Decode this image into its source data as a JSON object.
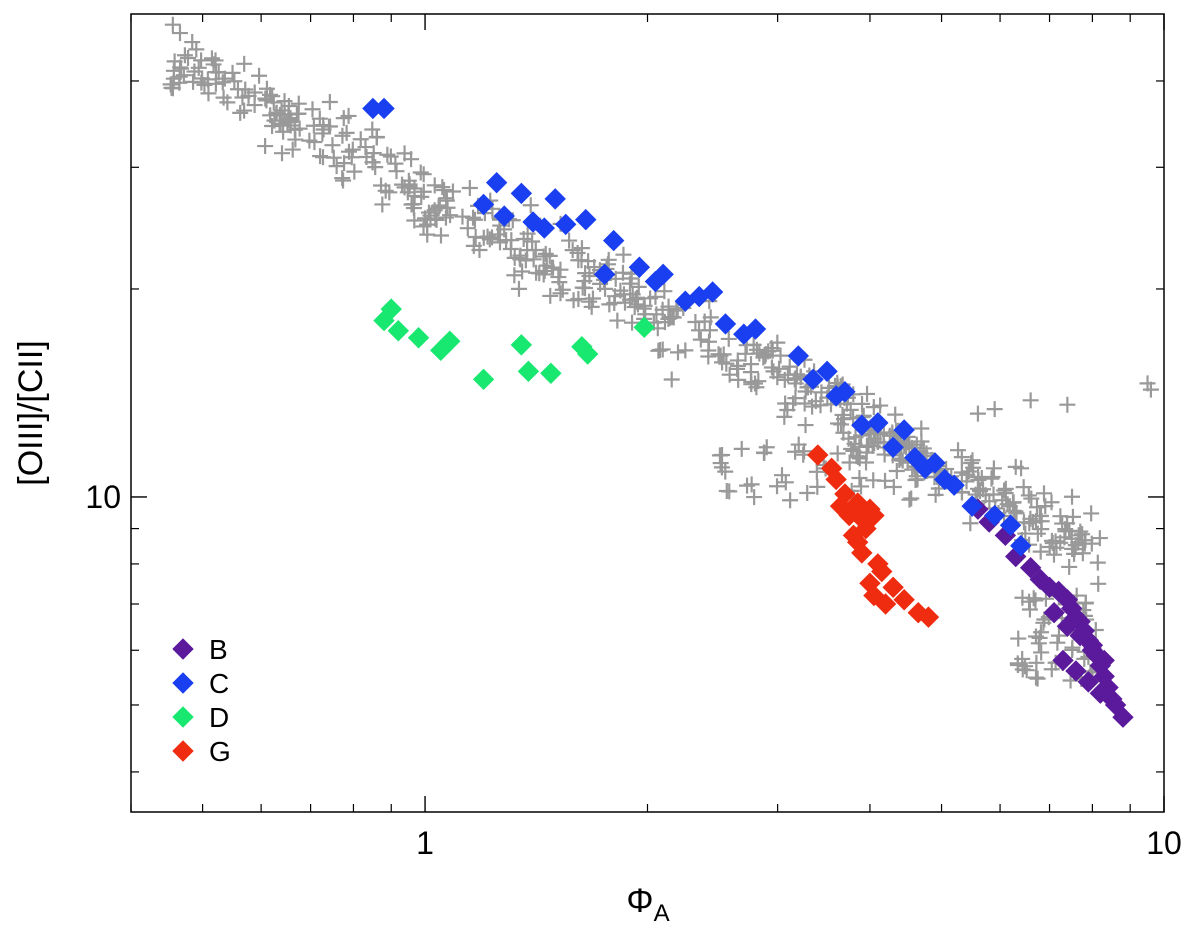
{
  "chart_data": {
    "type": "scatter",
    "title": "",
    "xlabel_symbol": "Φ",
    "xlabel_subscript": "A",
    "ylabel": "[OIII]/[CII]",
    "x_scale": "log",
    "y_scale": "log",
    "xlim": [
      0.4,
      10
    ],
    "ylim": [
      3.5,
      50
    ],
    "x_tick_labels": [
      {
        "value": 1,
        "label": "1"
      },
      {
        "value": 10,
        "label": "10"
      }
    ],
    "y_tick_labels": [
      {
        "value": 10,
        "label": "10"
      }
    ],
    "legend_position": "bottom-left",
    "background_series": {
      "name": "all",
      "marker": "plus",
      "color": "#999999"
    },
    "series": [
      {
        "name": "B",
        "marker": "diamond",
        "color": "#5b1a9c",
        "x": [
          5.6,
          5.8,
          6.1,
          6.3,
          6.6,
          6.8,
          7.0,
          7.2,
          7.4,
          7.5,
          7.6,
          7.7,
          7.8,
          7.9,
          8.0,
          8.1,
          8.2,
          8.3,
          8.4,
          8.5,
          7.3,
          7.6,
          7.9,
          8.2,
          8.6,
          8.8,
          7.1,
          7.4,
          7.7,
          8.0,
          8.3
        ],
        "y": [
          9.6,
          9.2,
          8.8,
          8.2,
          7.9,
          7.6,
          7.4,
          7.3,
          7.1,
          6.9,
          6.7,
          6.6,
          6.4,
          6.2,
          6.1,
          5.9,
          5.7,
          5.5,
          5.3,
          5.1,
          5.8,
          5.6,
          5.4,
          5.2,
          5.0,
          4.8,
          6.8,
          6.5,
          6.3,
          6.0,
          5.8
        ]
      },
      {
        "name": "C",
        "marker": "diamond",
        "color": "#1a3ff0",
        "x": [
          0.85,
          0.88,
          1.25,
          1.2,
          1.28,
          1.35,
          1.4,
          1.45,
          1.5,
          1.55,
          1.65,
          1.75,
          1.8,
          1.95,
          2.05,
          2.1,
          2.25,
          2.35,
          2.45,
          2.55,
          2.7,
          2.8,
          3.2,
          3.35,
          3.5,
          3.6,
          3.7,
          3.9,
          4.1,
          4.3,
          4.45,
          4.6,
          4.75,
          4.9,
          5.05,
          5.2,
          5.5,
          5.9,
          6.2,
          6.4
        ],
        "y": [
          36.5,
          36.5,
          28.5,
          26.5,
          25.5,
          27.5,
          25.0,
          24.5,
          27.0,
          24.8,
          25.2,
          21.0,
          23.5,
          21.5,
          20.5,
          21.0,
          19.2,
          19.5,
          19.8,
          17.8,
          17.2,
          17.5,
          16.0,
          14.8,
          15.2,
          14.0,
          14.2,
          12.7,
          12.8,
          11.8,
          12.5,
          11.4,
          11.0,
          11.2,
          10.6,
          10.4,
          9.7,
          9.4,
          9.1,
          8.5
        ]
      },
      {
        "name": "D",
        "marker": "diamond",
        "color": "#19e870",
        "x": [
          0.88,
          0.9,
          0.92,
          0.98,
          1.05,
          1.08,
          1.2,
          1.35,
          1.38,
          1.48,
          1.63,
          1.66,
          1.98
        ],
        "y": [
          18.0,
          18.7,
          17.4,
          17.0,
          16.3,
          16.8,
          14.8,
          16.6,
          15.2,
          15.1,
          16.5,
          16.1,
          17.6
        ],
        "pos_note": "x values in data units"
      },
      {
        "name": "G",
        "marker": "diamond",
        "color": "#ef2b10",
        "x": [
          3.4,
          3.55,
          3.6,
          3.7,
          3.65,
          3.75,
          3.85,
          3.9,
          3.95,
          4.0,
          4.05,
          3.8,
          3.85,
          3.9,
          4.1,
          4.15,
          4.0,
          4.05,
          4.2,
          4.3,
          4.45,
          4.65,
          4.8
        ],
        "y": [
          11.5,
          11.0,
          10.6,
          10.1,
          9.7,
          9.4,
          9.8,
          9.3,
          9.0,
          9.6,
          9.4,
          8.8,
          8.6,
          8.3,
          8.0,
          7.8,
          7.5,
          7.2,
          7.0,
          7.4,
          7.1,
          6.8,
          6.7
        ]
      }
    ]
  }
}
